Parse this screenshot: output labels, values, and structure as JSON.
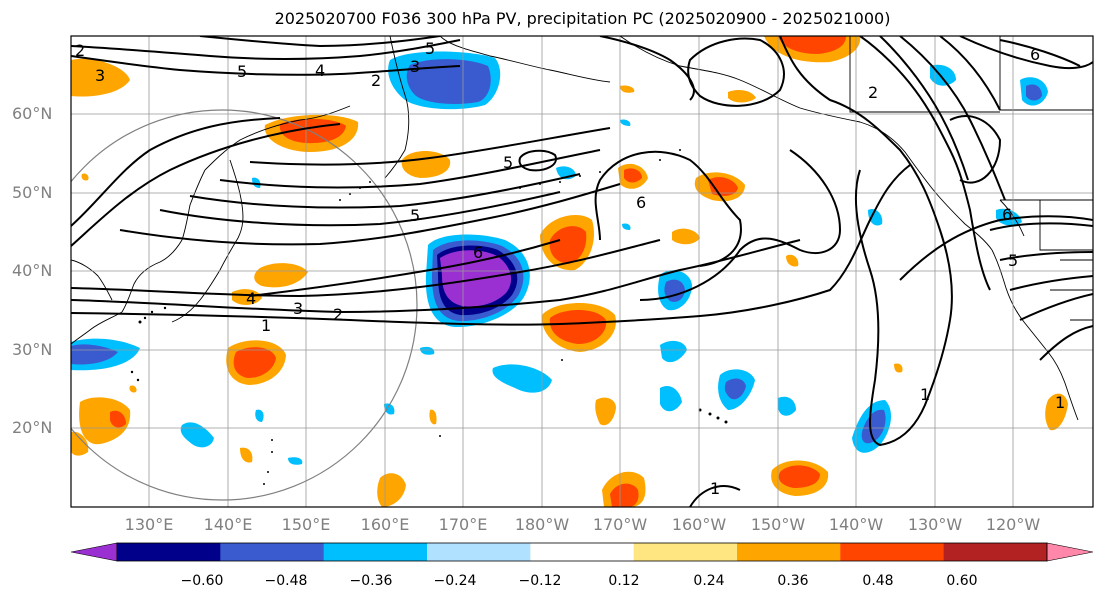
{
  "title": "2025020700 F036 300 hPa PV, precipitation PC (2025020900 - 2025021000)",
  "lat_labels": [
    "60°N",
    "50°N",
    "40°N",
    "30°N",
    "20°N"
  ],
  "lon_labels": [
    "130°E",
    "140°E",
    "150°E",
    "160°E",
    "170°E",
    "180°W",
    "170°W",
    "160°W",
    "150°W",
    "140°W",
    "130°W",
    "120°W"
  ],
  "contour_labels": [
    "1",
    "2",
    "3",
    "4",
    "5",
    "6"
  ],
  "colorbar": {
    "ticks": [
      "−0.60",
      "−0.48",
      "−0.36",
      "−0.24",
      "−0.12",
      "0.12",
      "0.24",
      "0.36",
      "0.48",
      "0.60"
    ],
    "colors": [
      "#9b30d2",
      "#00008b",
      "#3a5bd0",
      "#00bfff",
      "#b0e2ff",
      "#ffffff",
      "#ffe680",
      "#ffa500",
      "#ff4500",
      "#b22222",
      "#ff88aa"
    ]
  },
  "colors": {
    "neg_strong": "#9b30d2",
    "neg_dark": "#00008b",
    "neg_mid": "#3a5bd0",
    "neg_light": "#00bfff",
    "pos_light": "#ffa500",
    "pos_mid": "#ff4500",
    "grid": "#999999"
  }
}
